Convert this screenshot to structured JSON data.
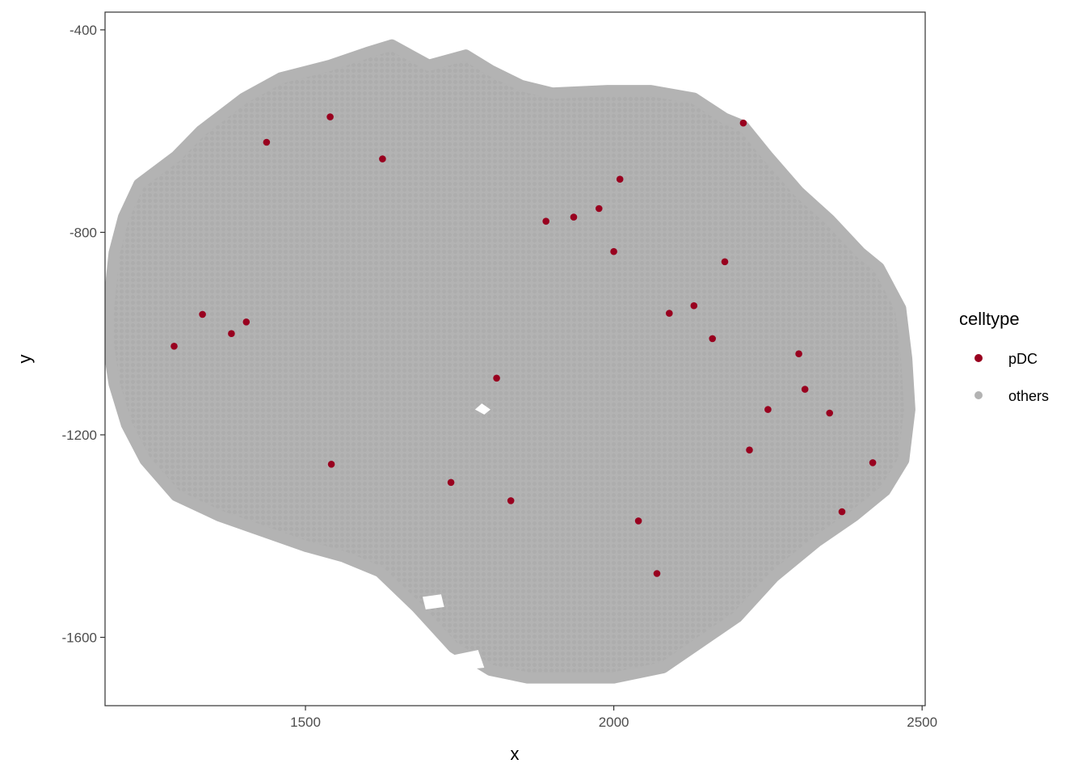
{
  "chart_data": {
    "type": "scatter",
    "title": "",
    "xlabel": "x",
    "ylabel": "y",
    "xlim": [
      1175,
      2505
    ],
    "ylim": [
      -1735,
      -365
    ],
    "x_ticks": [
      1500,
      2000,
      2500
    ],
    "y_ticks": [
      -400,
      -800,
      -1200,
      -1600
    ],
    "x_tick_labels": [
      "1500",
      "2000",
      "2500"
    ],
    "y_tick_labels": [
      "-400",
      "-800",
      "-1200",
      "-1600"
    ],
    "grid": false,
    "legend_position": "right",
    "legend_title": "celltype",
    "series": [
      {
        "name": "pDC",
        "color": "#99001f",
        "points": [
          [
            1437,
            -622
          ],
          [
            1404,
            -977
          ],
          [
            1333,
            -962
          ],
          [
            1542,
            -1258
          ],
          [
            1736,
            -1294
          ],
          [
            1833,
            -1330
          ],
          [
            2070,
            -1474
          ],
          [
            1890,
            -778
          ],
          [
            2000,
            -838
          ],
          [
            1976,
            -753
          ],
          [
            2010,
            -695
          ],
          [
            2180,
            -858
          ],
          [
            2310,
            -1110
          ],
          [
            2350,
            -1157
          ],
          [
            2210,
            -584
          ],
          [
            2130,
            -945
          ],
          [
            2090,
            -960
          ],
          [
            1935,
            -770
          ],
          [
            2250,
            -1150
          ],
          [
            2370,
            -1352
          ],
          [
            2220,
            -1230
          ],
          [
            2420,
            -1255
          ],
          [
            1287,
            -1025
          ],
          [
            1625,
            -655
          ],
          [
            1540,
            -572
          ],
          [
            1810,
            -1088
          ],
          [
            2040,
            -1370
          ],
          [
            2160,
            -1010
          ],
          [
            2300,
            -1040
          ],
          [
            1380,
            -1000
          ]
        ]
      },
      {
        "name": "others",
        "color": "#b3b3b3"
      }
    ],
    "others_outline": [
      [
        1180,
        -955
      ],
      [
        1190,
        -840
      ],
      [
        1205,
        -770
      ],
      [
        1230,
        -705
      ],
      [
        1290,
        -650
      ],
      [
        1330,
        -600
      ],
      [
        1400,
        -535
      ],
      [
        1460,
        -495
      ],
      [
        1540,
        -470
      ],
      [
        1600,
        -445
      ],
      [
        1640,
        -430
      ],
      [
        1700,
        -470
      ],
      [
        1760,
        -450
      ],
      [
        1800,
        -480
      ],
      [
        1850,
        -510
      ],
      [
        1900,
        -525
      ],
      [
        1990,
        -520
      ],
      [
        2060,
        -520
      ],
      [
        2130,
        -535
      ],
      [
        2180,
        -575
      ],
      [
        2210,
        -590
      ],
      [
        2250,
        -650
      ],
      [
        2300,
        -720
      ],
      [
        2350,
        -775
      ],
      [
        2400,
        -840
      ],
      [
        2430,
        -870
      ],
      [
        2465,
        -950
      ],
      [
        2475,
        -1050
      ],
      [
        2480,
        -1150
      ],
      [
        2470,
        -1250
      ],
      [
        2440,
        -1310
      ],
      [
        2390,
        -1360
      ],
      [
        2330,
        -1410
      ],
      [
        2260,
        -1480
      ],
      [
        2200,
        -1560
      ],
      [
        2140,
        -1610
      ],
      [
        2080,
        -1660
      ],
      [
        2000,
        -1680
      ],
      [
        1920,
        -1680
      ],
      [
        1860,
        -1680
      ],
      [
        1800,
        -1665
      ],
      [
        1740,
        -1620
      ],
      [
        1680,
        -1540
      ],
      [
        1620,
        -1470
      ],
      [
        1560,
        -1440
      ],
      [
        1500,
        -1420
      ],
      [
        1430,
        -1390
      ],
      [
        1360,
        -1360
      ],
      [
        1290,
        -1320
      ],
      [
        1240,
        -1250
      ],
      [
        1210,
        -1180
      ],
      [
        1190,
        -1100
      ],
      [
        1180,
        -1020
      ]
    ],
    "others_gaps": [
      [
        [
          1786,
          -1138
        ],
        [
          1800,
          -1150
        ],
        [
          1790,
          -1160
        ],
        [
          1775,
          -1150
        ]
      ],
      [
        [
          1740,
          -1635
        ],
        [
          1780,
          -1625
        ],
        [
          1790,
          -1660
        ],
        [
          1750,
          -1665
        ]
      ],
      [
        [
          1690,
          -1520
        ],
        [
          1720,
          -1515
        ],
        [
          1725,
          -1540
        ],
        [
          1695,
          -1545
        ]
      ]
    ]
  }
}
